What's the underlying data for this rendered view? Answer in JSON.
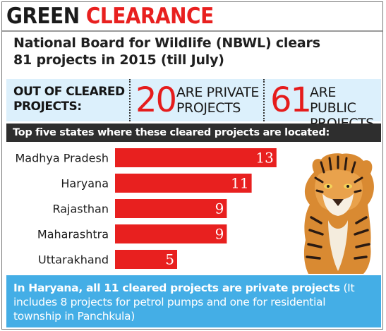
{
  "header": {
    "word1": "GREEN",
    "word2": "CLEARANCE"
  },
  "subtitle": "National Board for Wildlife (NBWL) clears 81 projects in 2015 (till July)",
  "stats": {
    "label": "OUT OF CLEARED PROJECTS:",
    "private": {
      "number": "20",
      "text": "ARE PRIVATE PROJECTS"
    },
    "public": {
      "number": "61",
      "text": "ARE PUBLIC PROJECTS"
    }
  },
  "states_heading": "Top five states where these cleared projects are located:",
  "chart_data": {
    "type": "bar",
    "orientation": "horizontal",
    "title": "",
    "xlabel": "",
    "ylabel": "",
    "categories": [
      "Madhya Pradesh",
      "Haryana",
      "Rajasthan",
      "Maharashtra",
      "Uttarakhand"
    ],
    "values": [
      13,
      11,
      9,
      9,
      5
    ],
    "xlim": [
      0,
      13
    ],
    "grid": false,
    "bar_color": "#e8201f",
    "label_color_inside": "#ffffff",
    "label_color_outside": "#e8201f"
  },
  "footnote": {
    "bold": "In Haryana, all 11 cleared projects are private projects",
    "normal": " (It includes 8 projects for petrol pumps and one for residential township in Panchkula)"
  },
  "colors": {
    "accent_red": "#e8201f",
    "stats_bg": "#dcf0fc",
    "heading_bg": "#2e2e2e",
    "footnote_bg": "#44aee6"
  },
  "image": {
    "subject": "tiger"
  }
}
